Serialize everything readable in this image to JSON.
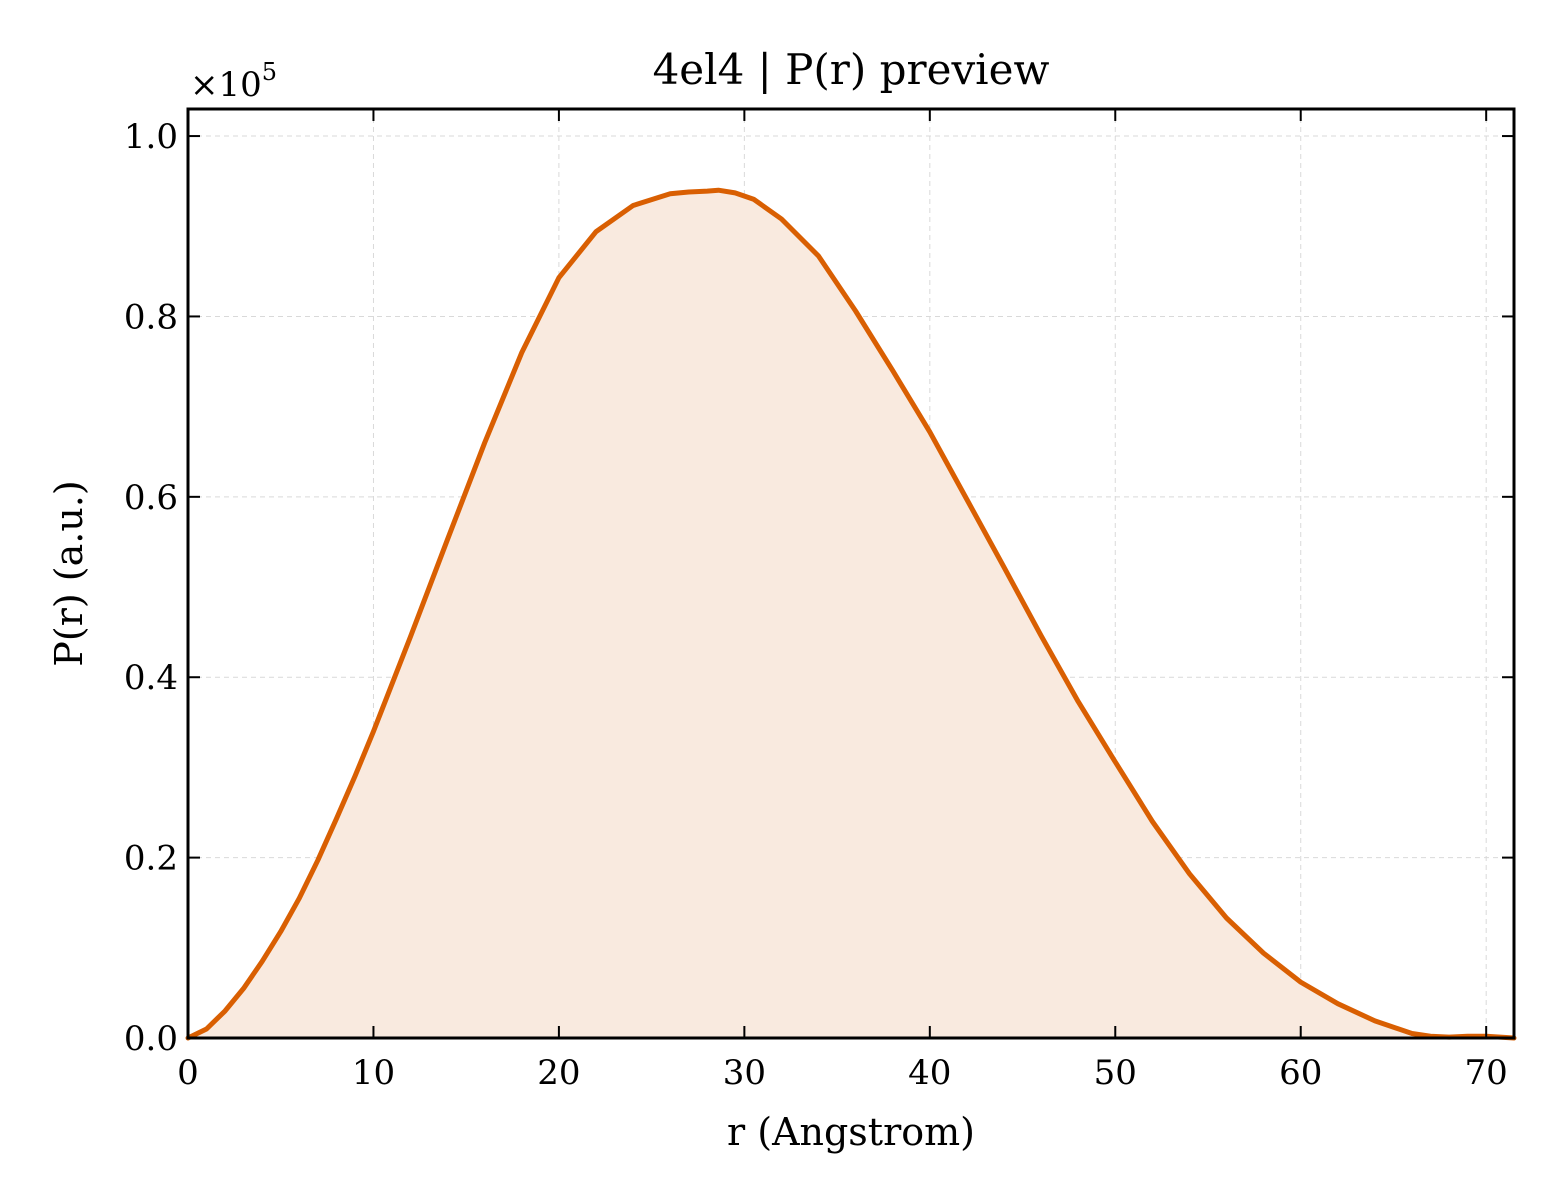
{
  "chart_data": {
    "type": "area",
    "title": "4el4 | P(r) preview",
    "xlabel": "r (Angstrom)",
    "ylabel": "P(r) (a.u.)",
    "y_scale_label": "×10",
    "y_scale_exponent": "5",
    "xlim": [
      0,
      71.5
    ],
    "ylim": [
      0,
      1.03
    ],
    "y_multiplier": 100000,
    "grid": true,
    "line_color": "#d95f02",
    "fill_color": "#f9eadf",
    "x_ticks": [
      0,
      10,
      20,
      30,
      40,
      50,
      60,
      70
    ],
    "x_tick_labels": [
      "0",
      "10",
      "20",
      "30",
      "40",
      "50",
      "60",
      "70"
    ],
    "y_ticks": [
      0.0,
      0.2,
      0.4,
      0.6,
      0.8,
      1.0
    ],
    "y_tick_labels": [
      "0.0",
      "0.2",
      "0.4",
      "0.6",
      "0.8",
      "1.0"
    ],
    "series": [
      {
        "x": [
          0,
          1,
          2,
          3,
          4,
          5,
          6,
          7,
          8,
          9,
          10,
          12,
          14,
          16,
          18,
          20,
          22,
          24,
          26,
          27,
          28,
          28.6,
          29.5,
          30.5,
          32,
          34,
          36,
          38,
          40,
          42,
          44,
          46,
          48,
          50,
          52,
          54,
          56,
          58,
          60,
          62,
          64,
          66,
          67,
          68,
          69,
          70,
          71.5
        ],
        "y": [
          0.0,
          0.01,
          0.03,
          0.055,
          0.085,
          0.118,
          0.155,
          0.197,
          0.243,
          0.29,
          0.34,
          0.445,
          0.553,
          0.66,
          0.76,
          0.843,
          0.894,
          0.923,
          0.936,
          0.938,
          0.939,
          0.94,
          0.937,
          0.93,
          0.908,
          0.867,
          0.806,
          0.74,
          0.672,
          0.597,
          0.522,
          0.446,
          0.373,
          0.306,
          0.24,
          0.182,
          0.133,
          0.094,
          0.062,
          0.038,
          0.019,
          0.005,
          0.002,
          0.001,
          0.002,
          0.002,
          0.0
        ]
      }
    ]
  }
}
